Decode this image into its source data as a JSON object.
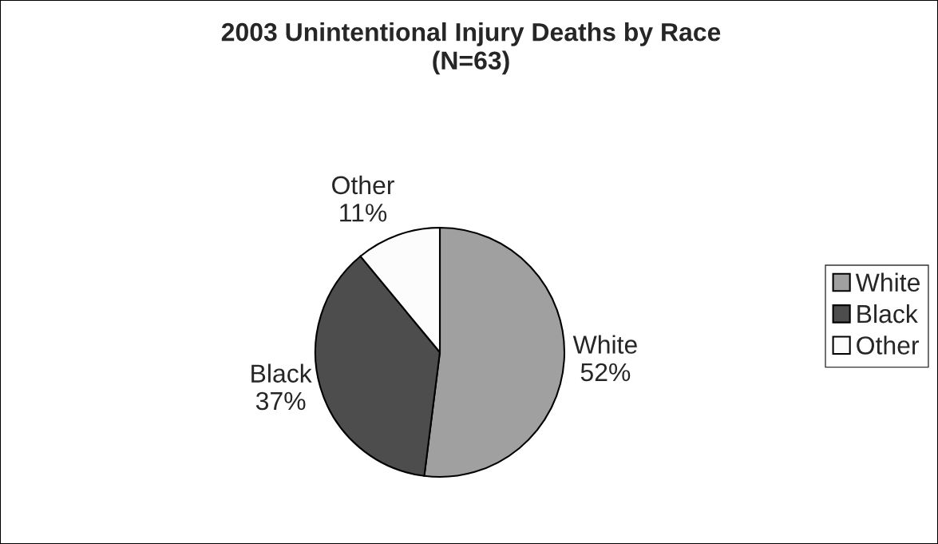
{
  "chart_data": {
    "type": "pie",
    "title": "2003 Unintentional Injury Deaths by Race\n(N=63)",
    "categories": [
      "White",
      "Black",
      "Other"
    ],
    "values": [
      52,
      37,
      11
    ],
    "colors": [
      "#a0a0a0",
      "#4d4d4d",
      "#fcfcfc"
    ],
    "value_labels": [
      "52%",
      "37%",
      "11%"
    ],
    "legend": "right"
  }
}
